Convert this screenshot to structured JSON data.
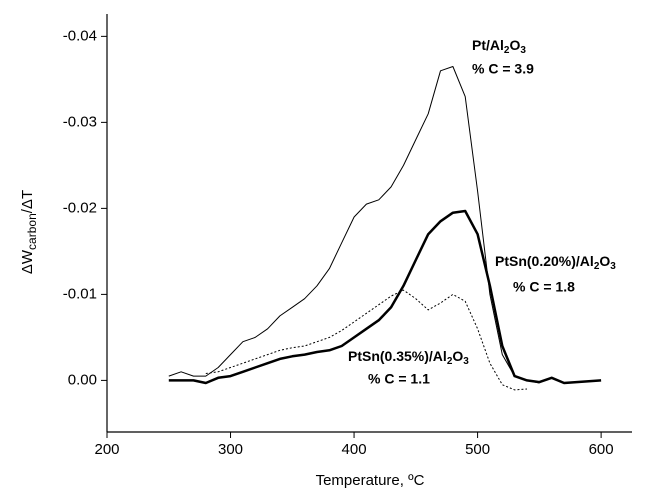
{
  "chart_data": {
    "type": "line",
    "xlabel": "Temperature, ºC",
    "ylabel": [
      "ΔW",
      "carbon",
      "/ΔT"
    ],
    "x": [
      250,
      260,
      270,
      280,
      290,
      300,
      310,
      320,
      330,
      340,
      350,
      360,
      370,
      380,
      390,
      400,
      410,
      420,
      430,
      440,
      450,
      460,
      470,
      480,
      490,
      500,
      510,
      520,
      530,
      540,
      550,
      560,
      570,
      580,
      590,
      600
    ],
    "xlim": [
      200,
      625
    ],
    "xticks": [
      200,
      300,
      400,
      500,
      600
    ],
    "ylim": [
      0.006,
      -0.0426
    ],
    "yticks": [
      {
        "value": 0,
        "label": "0.00"
      },
      -0.01,
      -0.02,
      -0.03,
      -0.04
    ],
    "series": [
      {
        "name": "Pt/Al2O3",
        "note": "% C = 3.9",
        "color": "#000000",
        "line_width": 1,
        "dash": "none",
        "values": [
          -0.0005,
          -0.001,
          -0.0005,
          -0.0005,
          -0.0015,
          -0.003,
          -0.0045,
          -0.005,
          -0.006,
          -0.0075,
          -0.0085,
          -0.0095,
          -0.011,
          -0.013,
          -0.016,
          -0.019,
          -0.0205,
          -0.021,
          -0.0225,
          -0.025,
          -0.028,
          -0.031,
          -0.036,
          -0.0365,
          -0.033,
          -0.022,
          -0.01,
          -0.003,
          -0.0005,
          0,
          0.0003,
          null,
          null,
          null,
          null,
          null
        ]
      },
      {
        "name": "PtSn(0.20%)/Al2O3",
        "note": "% C = 1.8",
        "color": "#000000",
        "line_width": 2.5,
        "dash": "none",
        "values": [
          0,
          0,
          0,
          0.0003,
          -0.0003,
          -0.0005,
          -0.001,
          -0.0015,
          -0.002,
          -0.0025,
          -0.0028,
          -0.003,
          -0.0033,
          -0.0035,
          -0.004,
          -0.005,
          -0.006,
          -0.007,
          -0.0085,
          -0.011,
          -0.014,
          -0.017,
          -0.0185,
          -0.0195,
          -0.0197,
          -0.017,
          -0.011,
          -0.004,
          -0.0005,
          0,
          0.0002,
          -0.0003,
          0.0003,
          0.0002,
          0.0001,
          0
        ]
      },
      {
        "name": "PtSn(0.35%)/Al2O3",
        "note": "% C = 1.1",
        "color": "#000000",
        "line_width": 1,
        "dash": "2 2",
        "values": [
          null,
          null,
          null,
          -0.0008,
          -0.001,
          -0.0015,
          -0.002,
          -0.0025,
          -0.003,
          -0.0035,
          -0.0038,
          -0.004,
          -0.0045,
          -0.005,
          -0.0058,
          -0.0068,
          -0.0078,
          -0.0088,
          -0.0098,
          -0.0105,
          -0.0095,
          -0.0082,
          -0.009,
          -0.01,
          -0.0092,
          -0.006,
          -0.002,
          0.0005,
          0.0011,
          0.001,
          null,
          null,
          null,
          null,
          null,
          null
        ]
      }
    ]
  }
}
